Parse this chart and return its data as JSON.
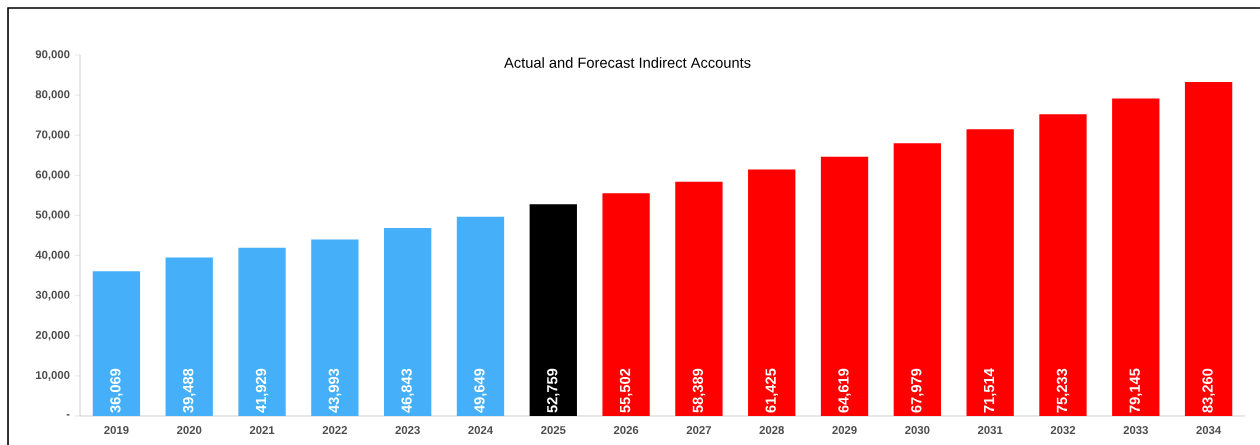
{
  "chart_data": {
    "type": "bar",
    "title": "Actual and Forecast Indirect Accounts",
    "categories": [
      "2019",
      "2020",
      "2021",
      "2022",
      "2023",
      "2024",
      "2025",
      "2026",
      "2027",
      "2028",
      "2029",
      "2030",
      "2031",
      "2032",
      "2033",
      "2034"
    ],
    "values": [
      36069,
      39488,
      41929,
      43993,
      46843,
      49649,
      52759,
      55502,
      58389,
      61425,
      64619,
      67979,
      71514,
      75233,
      79145,
      83260
    ],
    "value_labels": [
      "36,069",
      "39,488",
      "41,929",
      "43,993",
      "46,843",
      "49,649",
      "52,759",
      "55,502",
      "58,389",
      "61,425",
      "64,619",
      "67,979",
      "71,514",
      "75,233",
      "79,145",
      "83,260"
    ],
    "colors": [
      "#45b0f9",
      "#45b0f9",
      "#45b0f9",
      "#45b0f9",
      "#45b0f9",
      "#45b0f9",
      "#000000",
      "#ff0000",
      "#ff0000",
      "#ff0000",
      "#ff0000",
      "#ff0000",
      "#ff0000",
      "#ff0000",
      "#ff0000",
      "#ff0000"
    ],
    "ylim": [
      0,
      90000
    ],
    "yticks": [
      {
        "value": 0,
        "label": "-"
      },
      {
        "value": 10000,
        "label": "10,000"
      },
      {
        "value": 20000,
        "label": "20,000"
      },
      {
        "value": 30000,
        "label": "30,000"
      },
      {
        "value": 40000,
        "label": "40,000"
      },
      {
        "value": 50000,
        "label": "50,000"
      },
      {
        "value": 60000,
        "label": "60,000"
      },
      {
        "value": 70000,
        "label": "70,000"
      },
      {
        "value": 80000,
        "label": "80,000"
      },
      {
        "value": 90000,
        "label": "90,000"
      }
    ]
  }
}
